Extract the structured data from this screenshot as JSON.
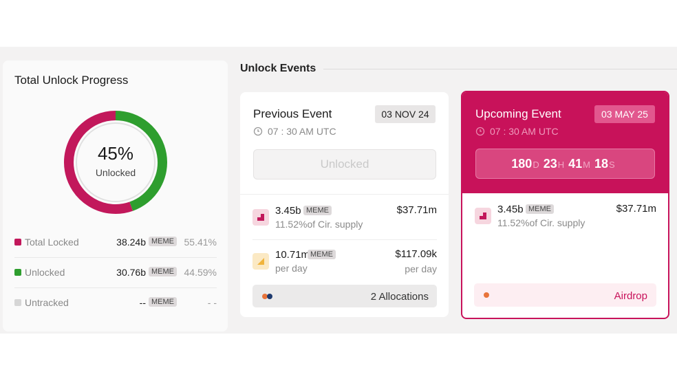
{
  "progress": {
    "title": "Total Unlock Progress",
    "center_value": "45%",
    "center_label": "Unlocked",
    "rows": [
      {
        "label": "Total Locked",
        "amount": "38.24b",
        "token": "MEME",
        "value": 55.41,
        "value_label": "55.41%",
        "color": "#c2185b"
      },
      {
        "label": "Unlocked",
        "amount": "30.76b",
        "token": "MEME",
        "value": 44.59,
        "value_label": "44.59%",
        "color": "#2e9e2e"
      },
      {
        "label": "Untracked",
        "amount": "--",
        "token": "MEME",
        "value_label": "- -",
        "color": "#d6d6d6"
      }
    ]
  },
  "events": {
    "title": "Unlock Events",
    "previous": {
      "title": "Previous Event",
      "date": "03 NOV 24",
      "time": "07 : 30 AM UTC",
      "status": "Unlocked",
      "rows": [
        {
          "amount": "3.45b",
          "token": "MEME",
          "sub": "11.52%of Cir. supply",
          "usd": "$37.71m"
        },
        {
          "amount": "10.71m",
          "token": "MEME",
          "sub": "per day",
          "usd": "$117.09k",
          "usd_sub": "per day"
        }
      ],
      "footer": "2 Allocations"
    },
    "upcoming": {
      "title": "Upcoming Event",
      "date": "03 MAY 25",
      "time": "07 : 30 AM UTC",
      "countdown": [
        "180",
        "D",
        "23",
        "H",
        "41",
        "M",
        "18",
        "S"
      ],
      "rows": [
        {
          "amount": "3.45b",
          "token": "MEME",
          "sub": "11.52%of Cir. supply",
          "usd": "$37.71m"
        }
      ],
      "footer": "Airdrop"
    }
  }
}
